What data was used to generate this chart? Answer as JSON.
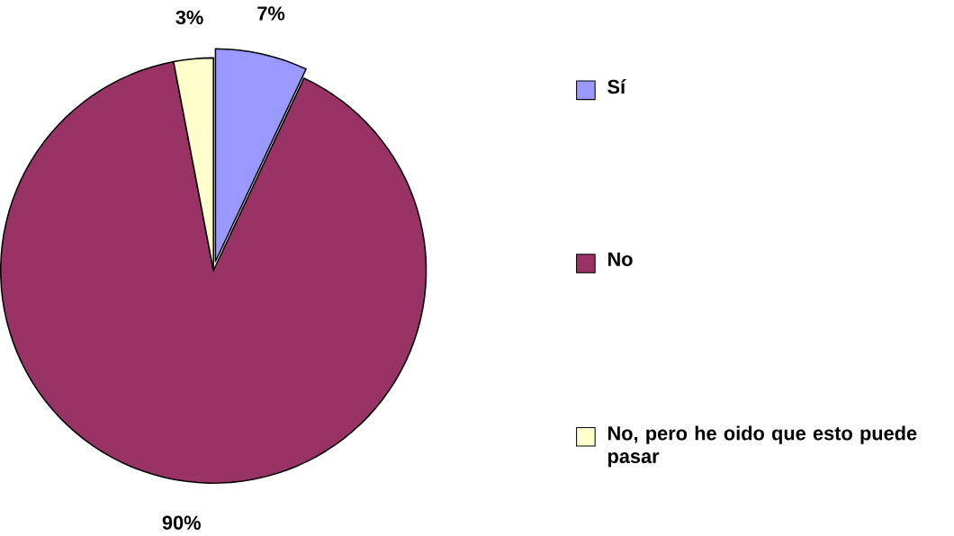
{
  "chart_data": {
    "type": "pie",
    "categories": [
      "Sí",
      "No",
      "No, pero he oido que esto puede pasar"
    ],
    "values": [
      7,
      90,
      3
    ],
    "colors": [
      "#9999ff",
      "#993366",
      "#ffffcc"
    ],
    "value_labels": [
      "7%",
      "90%",
      "3%"
    ],
    "legend": "right"
  }
}
